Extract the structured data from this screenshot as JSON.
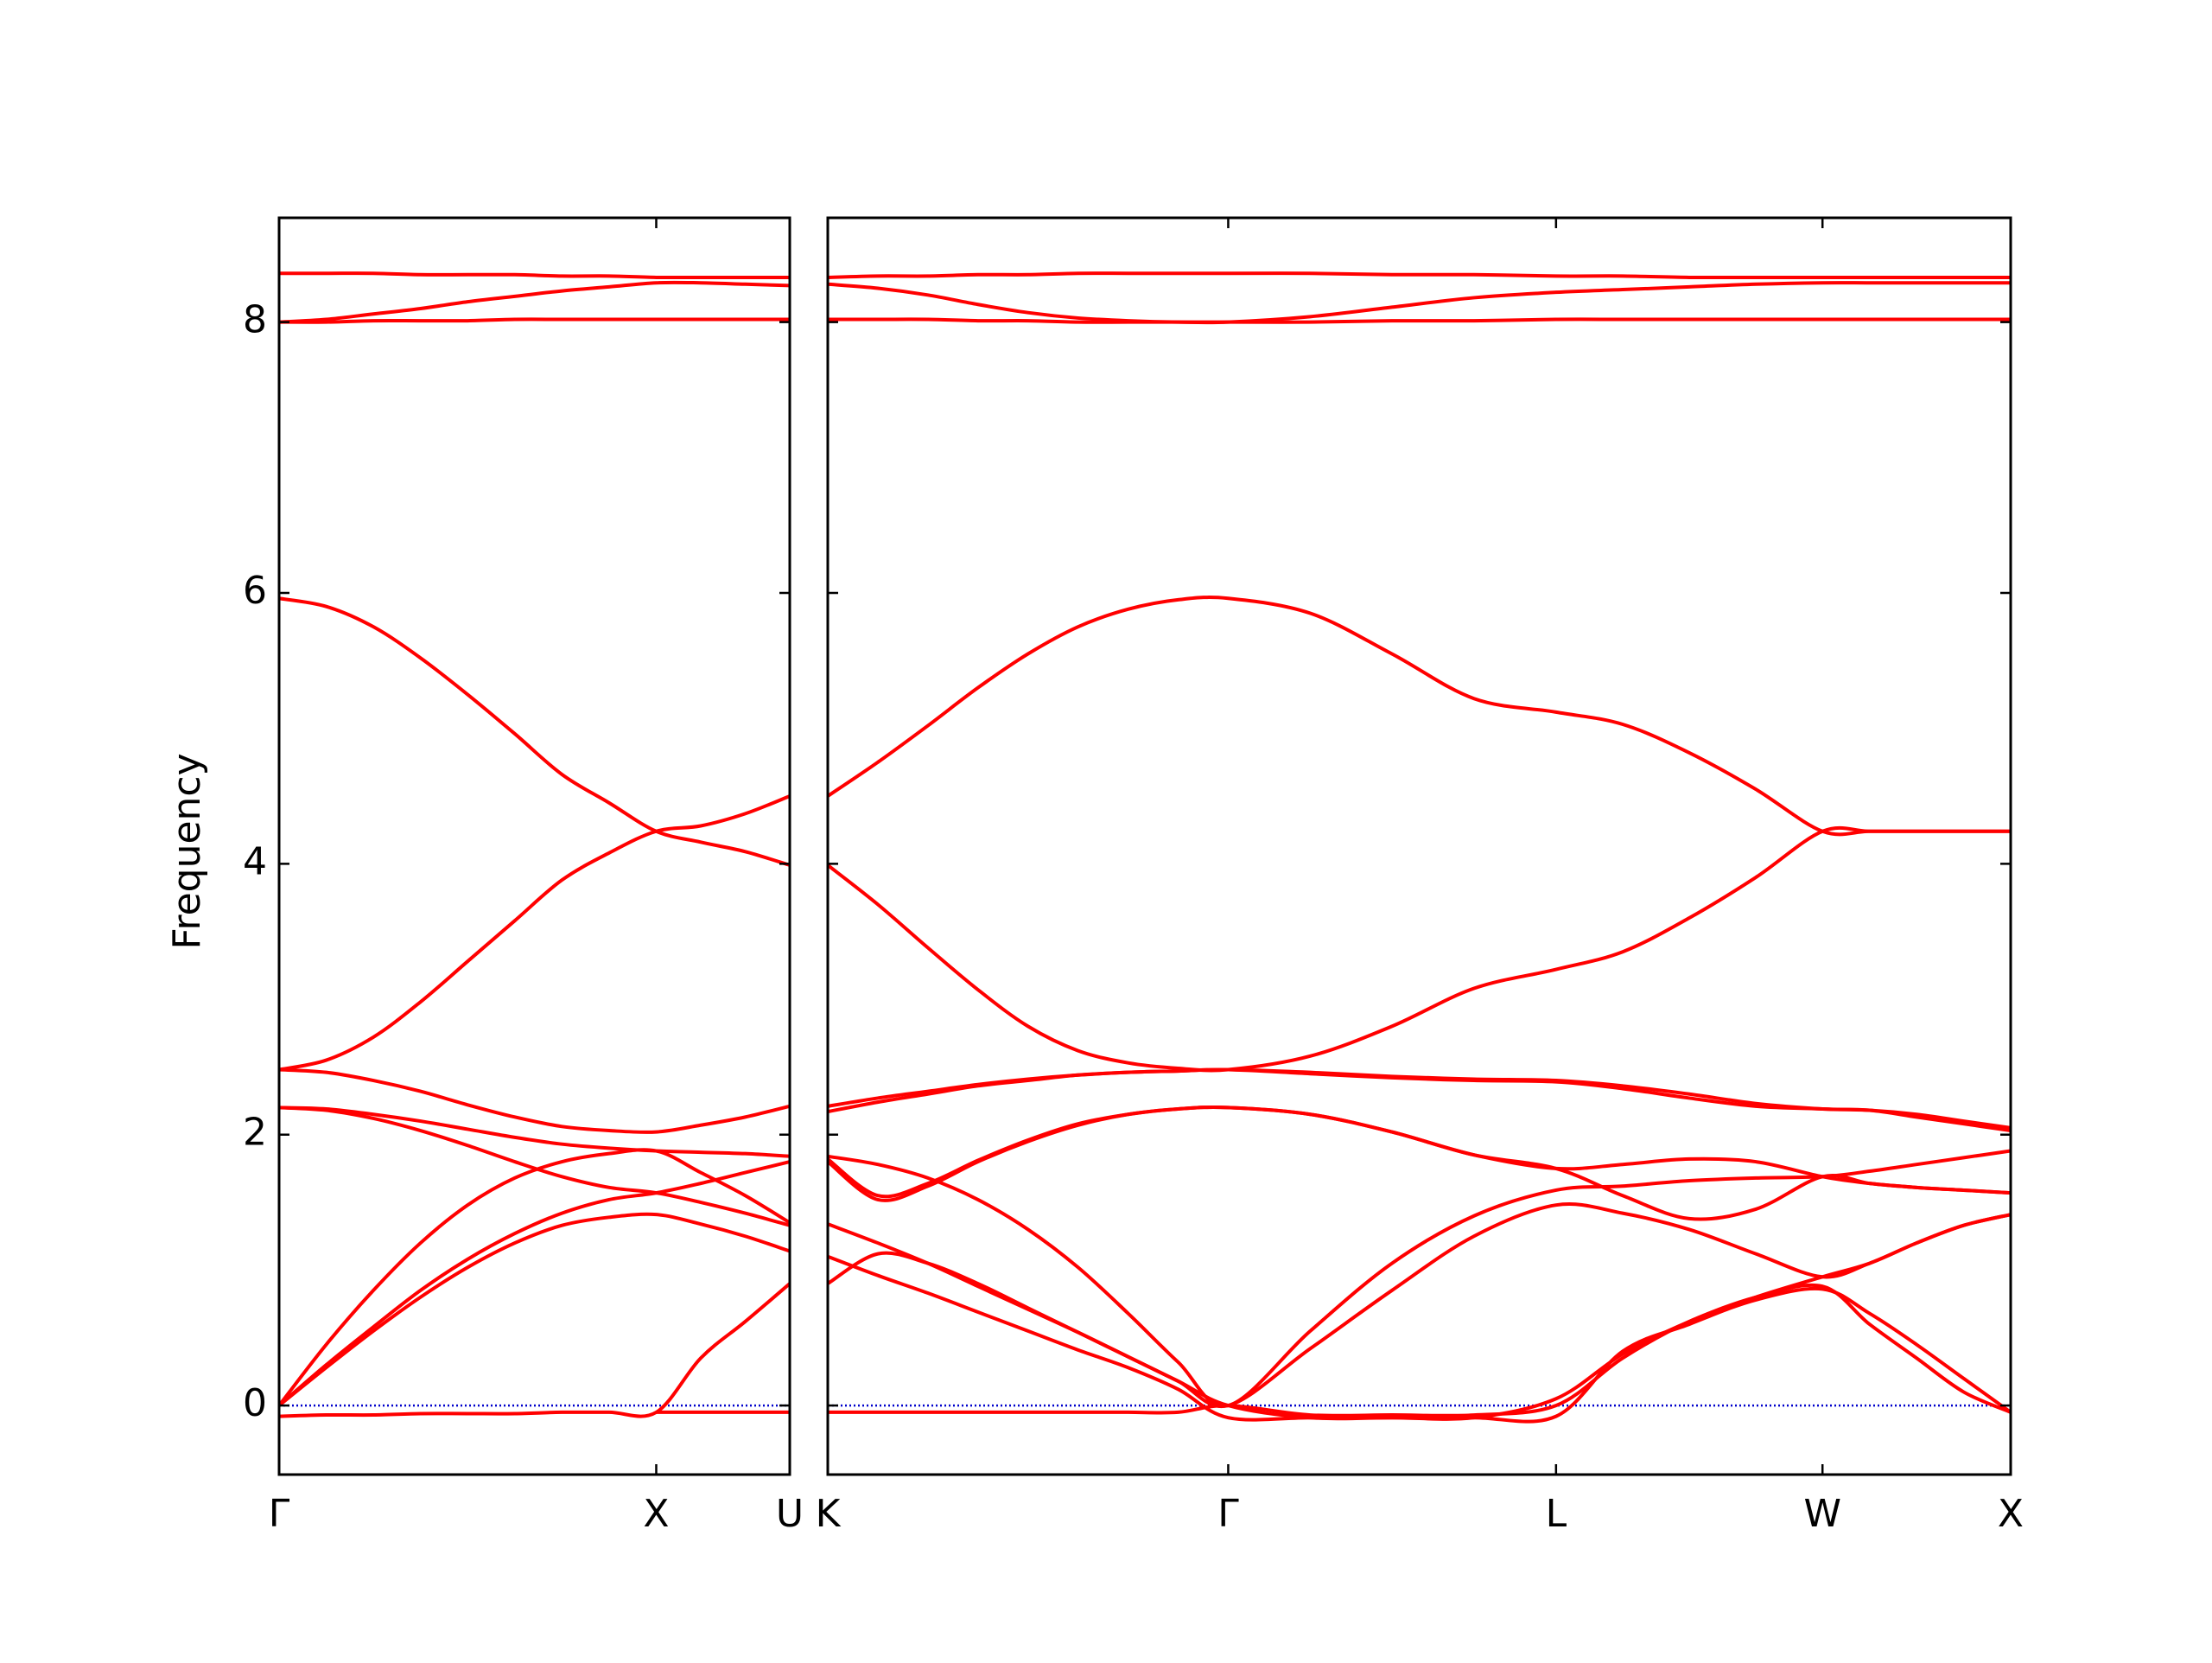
{
  "chart_data": [
    {
      "type": "line",
      "ylabel": "Frequency",
      "color": "#ff0000",
      "hlines": [
        0
      ],
      "hline_color": "#0000cc",
      "xlim": [
        0,
        1.354
      ],
      "ylim": [
        -0.51,
        8.77
      ],
      "xticks": [
        {
          "value": 0,
          "label": "Γ"
        },
        {
          "value": 1.0,
          "label": "X"
        },
        {
          "value": 1.354,
          "label": "U"
        }
      ],
      "yticks": [
        0,
        2,
        4,
        6,
        8
      ],
      "x": [
        0,
        0.125,
        0.25,
        0.375,
        0.5,
        0.625,
        0.75,
        0.875,
        1.0,
        1.118,
        1.236,
        1.354
      ],
      "series": [
        {
          "values": [
            8.36,
            8.36,
            8.36,
            8.35,
            8.35,
            8.35,
            8.34,
            8.34,
            8.33,
            8.33,
            8.33,
            8.33
          ]
        },
        {
          "values": [
            8.0,
            8.02,
            8.06,
            8.1,
            8.15,
            8.19,
            8.23,
            8.26,
            8.29,
            8.29,
            8.28,
            8.27
          ]
        },
        {
          "values": [
            8.0,
            8.0,
            8.01,
            8.01,
            8.01,
            8.02,
            8.02,
            8.02,
            8.02,
            8.02,
            8.02,
            8.02
          ]
        },
        {
          "values": [
            5.96,
            5.9,
            5.75,
            5.52,
            5.25,
            4.96,
            4.66,
            4.45,
            4.24,
            4.16,
            4.09,
            3.99
          ]
        },
        {
          "values": [
            2.48,
            2.55,
            2.72,
            2.98,
            3.28,
            3.58,
            3.88,
            4.08,
            4.24,
            4.28,
            4.37,
            4.5
          ]
        },
        {
          "values": [
            2.48,
            2.46,
            2.4,
            2.32,
            2.22,
            2.13,
            2.06,
            2.03,
            2.02,
            2.07,
            2.13,
            2.21
          ]
        },
        {
          "values": [
            2.2,
            2.19,
            2.15,
            2.1,
            2.04,
            1.98,
            1.93,
            1.9,
            1.88,
            1.87,
            1.86,
            1.84
          ]
        },
        {
          "values": [
            2.2,
            2.18,
            2.12,
            2.03,
            1.92,
            1.8,
            1.69,
            1.61,
            1.57,
            1.5,
            1.42,
            1.33
          ]
        },
        {
          "values": [
            0,
            0.45,
            0.85,
            1.2,
            1.48,
            1.68,
            1.8,
            1.86,
            1.88,
            1.72,
            1.55,
            1.35
          ]
        },
        {
          "values": [
            0,
            0.3,
            0.58,
            0.85,
            1.08,
            1.27,
            1.42,
            1.52,
            1.57,
            1.64,
            1.72,
            1.8
          ]
        },
        {
          "values": [
            0,
            0.28,
            0.55,
            0.8,
            1.02,
            1.2,
            1.33,
            1.39,
            1.41,
            1.34,
            1.25,
            1.14
          ]
        },
        {
          "values": [
            -0.08,
            -0.07,
            -0.07,
            -0.06,
            -0.06,
            -0.06,
            -0.05,
            -0.05,
            -0.05,
            0.35,
            0.62,
            0.9
          ]
        },
        {
          "values": [
            null,
            null,
            null,
            null,
            null,
            null,
            null,
            null,
            -0.05,
            -0.05,
            -0.05,
            -0.05
          ]
        }
      ]
    },
    {
      "type": "line",
      "color": "#ff0000",
      "hlines": [
        0
      ],
      "hline_color": "#0000cc",
      "xlim": [
        1.354,
        4.497
      ],
      "ylim": [
        -0.51,
        8.77
      ],
      "xticks": [
        {
          "value": 1.354,
          "label": "K"
        },
        {
          "value": 2.418,
          "label": "Γ"
        },
        {
          "value": 3.289,
          "label": "L"
        },
        {
          "value": 3.997,
          "label": "W"
        },
        {
          "value": 4.497,
          "label": "X"
        }
      ],
      "yticks": [
        0,
        2,
        4,
        6,
        8
      ],
      "x": [
        1.354,
        1.487,
        1.62,
        1.753,
        1.886,
        2.019,
        2.152,
        2.285,
        2.418,
        2.636,
        2.853,
        3.071,
        3.289,
        3.466,
        3.643,
        3.82,
        3.997,
        4.122,
        4.247,
        4.372,
        4.497
      ],
      "series": [
        {
          "values": [
            8.33,
            8.34,
            8.34,
            8.35,
            8.35,
            8.36,
            8.36,
            8.36,
            8.36,
            8.36,
            8.35,
            8.35,
            8.34,
            8.34,
            8.33,
            8.33,
            8.33,
            8.33,
            8.33,
            8.33,
            8.33
          ]
        },
        {
          "values": [
            8.28,
            8.25,
            8.2,
            8.13,
            8.07,
            8.03,
            8.01,
            8.0,
            8.0,
            8.04,
            8.11,
            8.18,
            8.22,
            8.24,
            8.26,
            8.28,
            8.29,
            8.29,
            8.29,
            8.29,
            8.29
          ]
        },
        {
          "values": [
            8.02,
            8.02,
            8.02,
            8.01,
            8.01,
            8.0,
            8.0,
            8.0,
            8.0,
            8.0,
            8.01,
            8.01,
            8.02,
            8.02,
            8.02,
            8.02,
            8.02,
            8.02,
            8.02,
            8.02,
            8.02
          ]
        },
        {
          "values": [
            4.5,
            4.75,
            5.02,
            5.3,
            5.55,
            5.75,
            5.88,
            5.95,
            5.96,
            5.85,
            5.55,
            5.22,
            5.12,
            5.03,
            4.82,
            4.55,
            4.24,
            4.24,
            4.24,
            4.24,
            4.24
          ]
        },
        {
          "values": [
            3.99,
            3.7,
            3.38,
            3.07,
            2.8,
            2.62,
            2.53,
            2.49,
            2.48,
            2.58,
            2.8,
            3.08,
            3.22,
            3.35,
            3.6,
            3.9,
            4.24,
            4.24,
            4.24,
            4.24,
            4.24
          ]
        },
        {
          "values": [
            2.21,
            2.27,
            2.32,
            2.37,
            2.41,
            2.44,
            2.46,
            2.47,
            2.48,
            2.46,
            2.43,
            2.41,
            2.4,
            2.36,
            2.3,
            2.23,
            2.19,
            2.18,
            2.13,
            2.08,
            2.03
          ]
        },
        {
          "values": [
            2.17,
            2.24,
            2.3,
            2.36,
            2.4,
            2.44,
            2.46,
            2.47,
            2.48,
            2.45,
            2.42,
            2.4,
            2.39,
            2.34,
            2.27,
            2.21,
            2.19,
            2.18,
            2.15,
            2.1,
            2.05
          ]
        },
        {
          "values": [
            1.8,
            1.52,
            1.62,
            1.8,
            1.95,
            2.07,
            2.15,
            2.19,
            2.2,
            2.15,
            2.02,
            1.85,
            1.75,
            1.78,
            1.82,
            1.8,
            1.69,
            1.64,
            1.61,
            1.59,
            1.57
          ]
        },
        {
          "values": [
            1.84,
            1.78,
            1.68,
            1.52,
            1.3,
            1.02,
            0.68,
            0.32,
            0.0,
            0.55,
            1.05,
            1.4,
            1.59,
            1.62,
            1.66,
            1.68,
            1.69,
            1.73,
            1.78,
            1.83,
            1.88
          ]
        },
        {
          "values": [
            1.82,
            1.55,
            1.64,
            1.81,
            1.96,
            2.08,
            2.15,
            2.19,
            2.2,
            2.15,
            2.02,
            1.85,
            1.75,
            1.55,
            1.38,
            1.45,
            1.69,
            1.64,
            1.61,
            1.59,
            1.57
          ]
        },
        {
          "values": [
            1.34,
            1.2,
            1.05,
            0.88,
            0.71,
            0.54,
            0.36,
            0.18,
            0.0,
            0.42,
            0.85,
            1.25,
            1.48,
            1.42,
            1.3,
            1.12,
            0.95,
            1.05,
            1.2,
            1.33,
            1.41
          ]
        },
        {
          "values": [
            0.9,
            1.12,
            1.05,
            0.9,
            0.72,
            0.54,
            0.36,
            0.18,
            0.0,
            -0.09,
            -0.09,
            -0.09,
            0.05,
            0.38,
            0.62,
            0.8,
            0.88,
            0.6,
            0.35,
            0.1,
            -0.05
          ]
        },
        {
          "values": [
            1.1,
            0.96,
            0.83,
            0.69,
            0.55,
            0.41,
            0.28,
            0.12,
            -0.09,
            -0.09,
            -0.09,
            -0.09,
            -0.08,
            0.4,
            0.6,
            0.78,
            0.86,
            0.68,
            0.45,
            0.2,
            -0.05
          ]
        },
        {
          "values": [
            -0.05,
            -0.05,
            -0.05,
            -0.05,
            -0.05,
            -0.05,
            -0.05,
            -0.05,
            0.0,
            -0.07,
            -0.07,
            -0.07,
            0.0,
            0.35,
            0.62,
            0.8,
            0.95,
            1.05,
            1.2,
            1.33,
            1.41
          ]
        }
      ]
    }
  ]
}
